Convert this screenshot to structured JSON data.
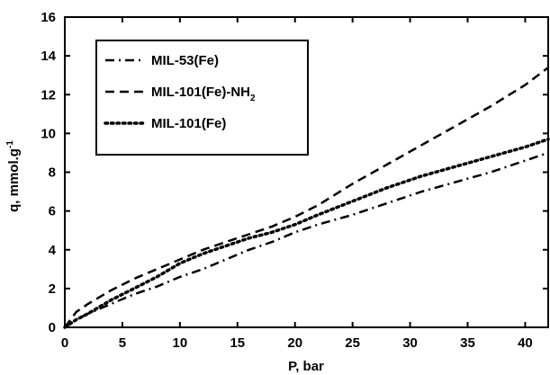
{
  "chart_data": {
    "type": "line",
    "xlabel": "P, bar",
    "ylabel_main": "q, mmol.g",
    "ylabel_sup": "-1",
    "xlim": [
      0,
      42
    ],
    "ylim": [
      0,
      16
    ],
    "xticks": [
      0,
      5,
      10,
      15,
      20,
      25,
      30,
      35,
      40
    ],
    "yticks": [
      0,
      2,
      4,
      6,
      8,
      10,
      12,
      14,
      16
    ],
    "grid": false,
    "legend_position": "top-left",
    "series": [
      {
        "name": "MIL-53(Fe)",
        "style": "dash-dot",
        "color": "#000000",
        "x": [
          0,
          1,
          2,
          4,
          6,
          8,
          10,
          12,
          14,
          16,
          18,
          20,
          22,
          25,
          28,
          31,
          34,
          37,
          40,
          42
        ],
        "y": [
          0,
          0.4,
          0.7,
          1.2,
          1.7,
          2.1,
          2.6,
          3.0,
          3.5,
          4.0,
          4.4,
          4.9,
          5.3,
          5.8,
          6.4,
          7.0,
          7.5,
          8.0,
          8.6,
          9.0
        ]
      },
      {
        "name": "MIL-101(Fe)-NH",
        "name_sub": "2",
        "style": "dashed",
        "color": "#000000",
        "x": [
          0,
          1,
          2,
          4,
          6,
          8,
          10,
          12,
          14,
          16,
          18,
          20,
          22,
          25,
          28,
          31,
          34,
          37,
          40,
          42
        ],
        "y": [
          0,
          0.8,
          1.2,
          1.9,
          2.5,
          3.0,
          3.5,
          4.0,
          4.4,
          4.8,
          5.2,
          5.7,
          6.3,
          7.4,
          8.4,
          9.4,
          10.4,
          11.4,
          12.5,
          13.4
        ]
      },
      {
        "name": "MIL-101(Fe)",
        "style": "dotted",
        "color": "#000000",
        "x": [
          0,
          1,
          2,
          4,
          6,
          8,
          10,
          12,
          14,
          16,
          18,
          20,
          22,
          25,
          28,
          31,
          34,
          37,
          40,
          42
        ],
        "y": [
          0,
          0.4,
          0.7,
          1.4,
          2.0,
          2.6,
          3.3,
          3.8,
          4.2,
          4.6,
          4.9,
          5.3,
          5.8,
          6.5,
          7.2,
          7.8,
          8.3,
          8.8,
          9.3,
          9.7
        ]
      }
    ]
  }
}
